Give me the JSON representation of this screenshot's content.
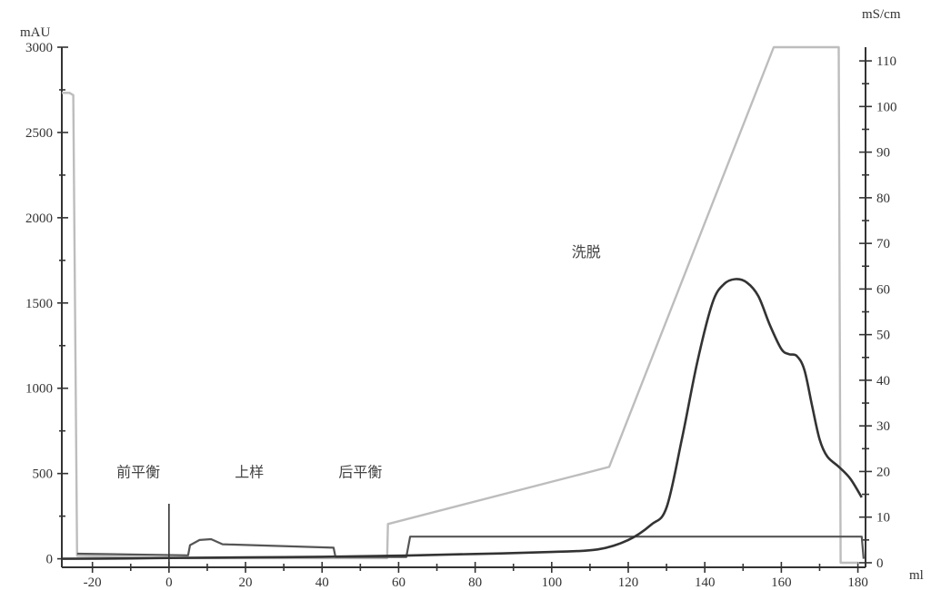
{
  "chart_data": {
    "type": "line",
    "left_axis": {
      "unit": "mAU",
      "ylim": [
        -50,
        3000
      ],
      "ticks": [
        0,
        500,
        1000,
        1500,
        2000,
        2500,
        3000
      ],
      "tick_labels": [
        "0",
        "500",
        "1000",
        "1500",
        "2000",
        "2500",
        "3000"
      ]
    },
    "right_axis": {
      "unit": "mS/cm",
      "ylim": [
        -1,
        113
      ],
      "ticks": [
        0,
        10,
        20,
        30,
        40,
        50,
        60,
        70,
        80,
        90,
        100,
        110
      ],
      "tick_labels": [
        "0",
        "10",
        "20",
        "30",
        "40",
        "50",
        "60",
        "70",
        "80",
        "90",
        "100",
        "110"
      ]
    },
    "x_axis": {
      "unit": "ml",
      "xlim": [
        -28,
        182
      ],
      "ticks": [
        -20,
        0,
        20,
        40,
        60,
        80,
        100,
        120,
        140,
        160,
        180
      ],
      "tick_labels": [
        "-20",
        "0",
        "20",
        "40",
        "60",
        "80",
        "100",
        "120",
        "140",
        "160",
        "180"
      ]
    },
    "series": [
      {
        "axis": "left",
        "color": "#333333",
        "points": [
          [
            -28,
            0
          ],
          [
            -10,
            2
          ],
          [
            0,
            5
          ],
          [
            20,
            8
          ],
          [
            40,
            12
          ],
          [
            60,
            18
          ],
          [
            80,
            28
          ],
          [
            100,
            40
          ],
          [
            112,
            55
          ],
          [
            120,
            110
          ],
          [
            126,
            200
          ],
          [
            130,
            300
          ],
          [
            134,
            700
          ],
          [
            138,
            1150
          ],
          [
            142,
            1500
          ],
          [
            145,
            1610
          ],
          [
            148,
            1640
          ],
          [
            151,
            1620
          ],
          [
            154,
            1540
          ],
          [
            157,
            1370
          ],
          [
            160,
            1230
          ],
          [
            162,
            1200
          ],
          [
            164,
            1190
          ],
          [
            166,
            1110
          ],
          [
            168,
            900
          ],
          [
            170,
            700
          ],
          [
            172,
            600
          ],
          [
            175,
            540
          ],
          [
            178,
            470
          ],
          [
            181,
            360
          ]
        ]
      },
      {
        "axis": "right",
        "color": "#bdbdbd",
        "points": [
          [
            -28,
            103
          ],
          [
            -26,
            103
          ],
          [
            -25,
            102.5
          ],
          [
            -24,
            1.5
          ],
          [
            5,
            1
          ],
          [
            57,
            1
          ],
          [
            57.2,
            8.5
          ],
          [
            115,
            21
          ],
          [
            158,
            113
          ],
          [
            175,
            113
          ],
          [
            175.5,
            0
          ],
          [
            180,
            0
          ]
        ]
      },
      {
        "axis": "left",
        "color": "#555555",
        "points": [
          [
            -24,
            30
          ],
          [
            5,
            20
          ],
          [
            5.5,
            80
          ],
          [
            8,
            110
          ],
          [
            11,
            115
          ],
          [
            14,
            85
          ],
          [
            43,
            65
          ],
          [
            43.5,
            10
          ],
          [
            62,
            10
          ],
          [
            63,
            130
          ],
          [
            181,
            130
          ],
          [
            181.5,
            0
          ]
        ]
      }
    ],
    "annotations": [
      {
        "text": "前平衡",
        "x": -8,
        "y": 480
      },
      {
        "text": "上样",
        "x": 21,
        "y": 480
      },
      {
        "text": "后平衡",
        "x": 50,
        "y": 480
      },
      {
        "text": "洗脱",
        "x": 109,
        "y": 1770
      }
    ],
    "marker_x": 0
  }
}
